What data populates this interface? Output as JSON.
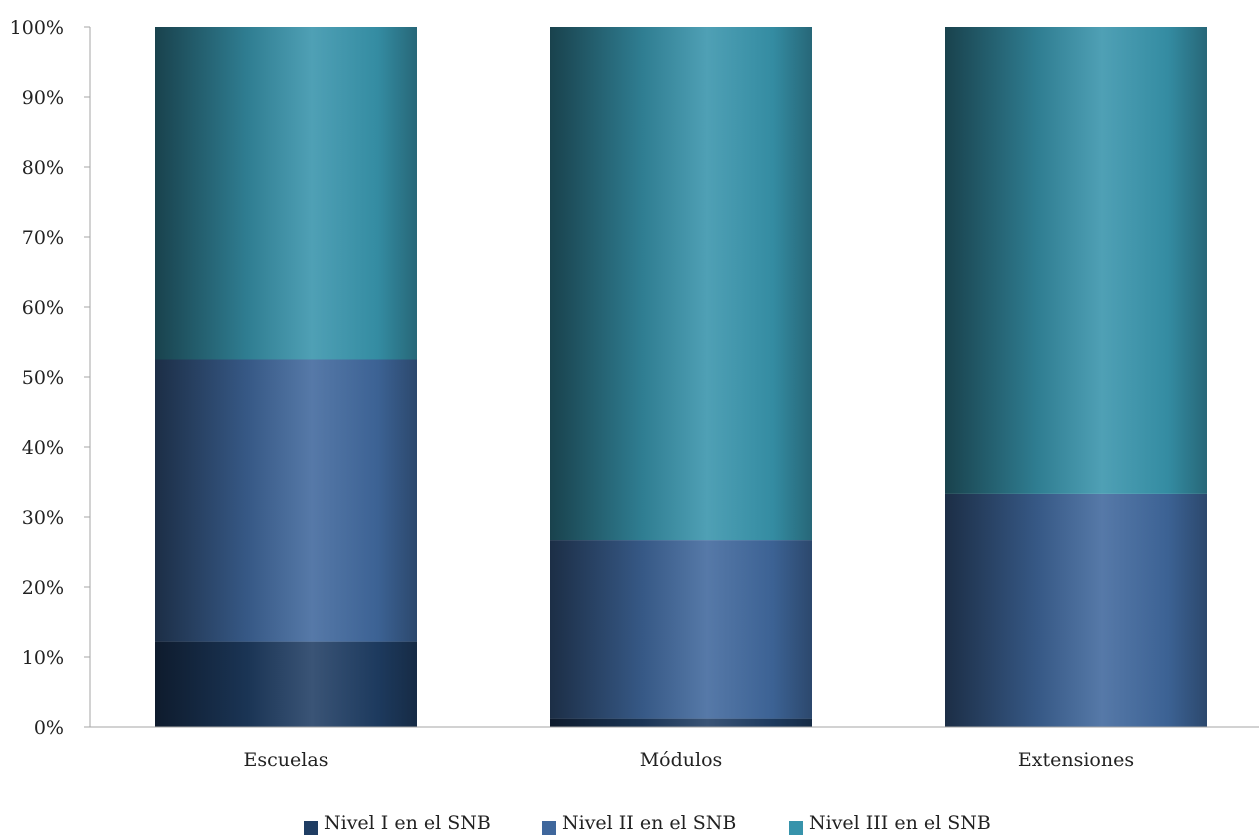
{
  "chart_data": {
    "type": "bar",
    "stacked": true,
    "categories": [
      "Escuelas",
      "Módulos",
      "Extensiones"
    ],
    "series": [
      {
        "name": "Nivel I en el SNB",
        "values": [
          12.2,
          1.2,
          0.0
        ],
        "color": "#1f3d63"
      },
      {
        "name": "Nivel II en el SNB",
        "values": [
          40.3,
          25.5,
          33.3
        ],
        "color": "#3f679c"
      },
      {
        "name": "Nivel III en el SNB",
        "values": [
          47.5,
          73.3,
          66.7
        ],
        "color": "#3793ab"
      }
    ],
    "ylim": [
      0,
      100
    ],
    "yticks": [
      "0%",
      "10%",
      "20%",
      "30%",
      "40%",
      "50%",
      "60%",
      "70%",
      "80%",
      "90%",
      "100%"
    ],
    "grid": false,
    "legend_position": "bottom"
  }
}
